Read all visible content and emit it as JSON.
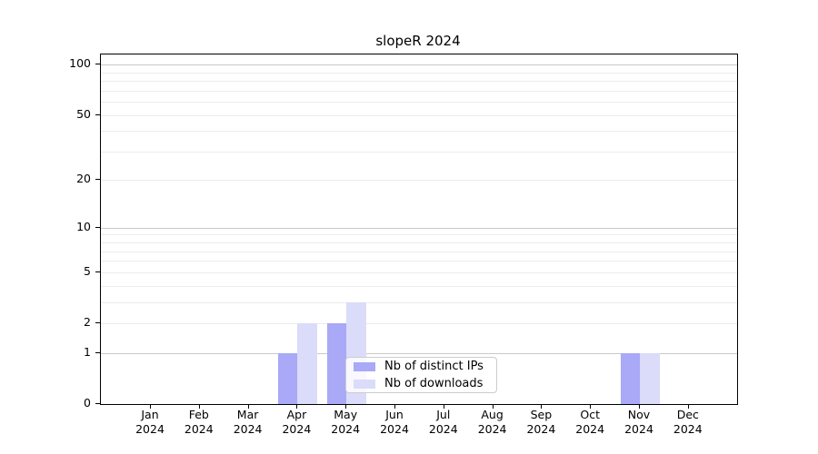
{
  "title": "slopeR 2024",
  "chart_data": {
    "type": "bar",
    "title": "slopeR 2024",
    "categories": [
      "Jan 2024",
      "Feb 2024",
      "Mar 2024",
      "Apr 2024",
      "May 2024",
      "Jun 2024",
      "Jul 2024",
      "Aug 2024",
      "Sep 2024",
      "Oct 2024",
      "Nov 2024",
      "Dec 2024"
    ],
    "series": [
      {
        "name": "Nb of distinct IPs",
        "color": "#a9a9f7",
        "values": [
          0,
          0,
          0,
          1,
          2,
          0,
          0,
          0,
          0,
          0,
          1,
          0
        ]
      },
      {
        "name": "Nb of downloads",
        "color": "#dbdbfa",
        "values": [
          0,
          0,
          0,
          2,
          3,
          0,
          0,
          0,
          0,
          0,
          1,
          0
        ]
      }
    ],
    "xlabel": "",
    "ylabel": "",
    "yscale": "log1p",
    "ylim": [
      0,
      115
    ],
    "yticks": [
      0,
      1,
      2,
      5,
      10,
      20,
      50,
      100
    ],
    "grid": "horizontal",
    "grid_minor_values": [
      2,
      3,
      4,
      5,
      6,
      7,
      8,
      9,
      20,
      30,
      40,
      50,
      60,
      70,
      80,
      90
    ],
    "grid_major_values": [
      1,
      10,
      100
    ],
    "legend_position": "inside-bottom-center"
  },
  "colors": {
    "spine": "#000000",
    "grid_minor": "#ececec",
    "grid_major": "#c9c9c9",
    "bar_distinct_ips": "#a9a9f7",
    "bar_downloads": "#dbdbfa",
    "legend_border": "#cccccc"
  }
}
